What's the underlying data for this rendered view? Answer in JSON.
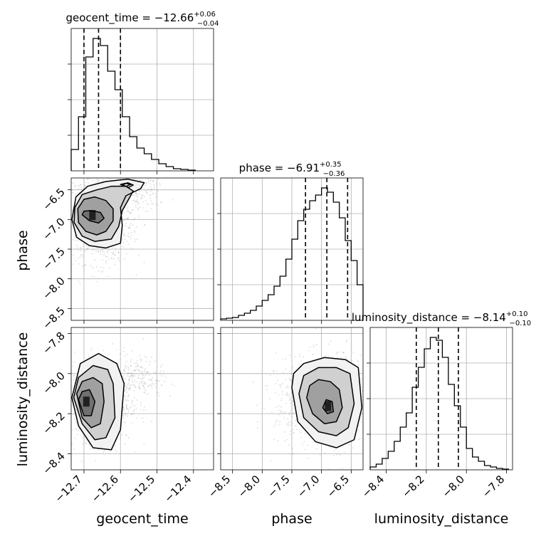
{
  "chart_data": {
    "type": "corner",
    "parameters": [
      {
        "key": "geocent_time",
        "label": "geocent_time",
        "median": -12.66,
        "plus": "+0.06",
        "minus": "−0.04",
        "title_main": "geocent_time = −12.66",
        "quantiles": [
          -12.7,
          -12.66,
          -12.6
        ],
        "range": [
          -12.735,
          -12.345
        ],
        "ticks": [
          -12.7,
          -12.6,
          -12.5,
          -12.4
        ],
        "tick_labels": [
          "−12.7",
          "−12.6",
          "−12.5",
          "−12.4"
        ],
        "hist_edges": [
          -12.735,
          -12.715,
          -12.695,
          -12.675,
          -12.655,
          -12.635,
          -12.615,
          -12.595,
          -12.575,
          -12.555,
          -12.535,
          -12.515,
          -12.495,
          -12.475,
          -12.455,
          -12.435,
          -12.415,
          -12.395
        ],
        "hist_counts": [
          0.15,
          0.38,
          0.8,
          0.93,
          0.88,
          0.7,
          0.57,
          0.38,
          0.24,
          0.16,
          0.12,
          0.08,
          0.05,
          0.03,
          0.015,
          0.01,
          0.005
        ]
      },
      {
        "key": "phase",
        "label": "phase",
        "median": -6.91,
        "plus": "+0.35",
        "minus": "−0.36",
        "title_main": "phase = −6.91",
        "quantiles": [
          -7.27,
          -6.91,
          -6.56
        ],
        "range": [
          -8.7,
          -6.3
        ],
        "ticks": [
          -8.5,
          -8.0,
          -7.5,
          -7.0,
          -6.5
        ],
        "tick_labels": [
          "−8.5",
          "−8.0",
          "−7.5",
          "−7.0",
          "−6.5"
        ],
        "hist_edges": [
          -8.7,
          -8.6,
          -8.5,
          -8.4,
          -8.3,
          -8.2,
          -8.1,
          -8.0,
          -7.9,
          -7.8,
          -7.7,
          -7.6,
          -7.5,
          -7.4,
          -7.3,
          -7.2,
          -7.1,
          -7.0,
          -6.9,
          -6.8,
          -6.7,
          -6.6,
          -6.5,
          -6.4,
          -6.3
        ],
        "hist_counts": [
          0.01,
          0.015,
          0.02,
          0.035,
          0.05,
          0.07,
          0.1,
          0.14,
          0.18,
          0.24,
          0.31,
          0.43,
          0.57,
          0.7,
          0.78,
          0.84,
          0.88,
          0.93,
          0.9,
          0.83,
          0.72,
          0.56,
          0.42,
          0.25
        ]
      },
      {
        "key": "luminosity_distance",
        "label": "luminosity_distance",
        "median": -8.14,
        "plus": "+0.10",
        "minus": "−0.10",
        "title_main": "luminosity_distance = −8.14",
        "quantiles": [
          -8.25,
          -8.14,
          -8.04
        ],
        "range": [
          -8.48,
          -7.77
        ],
        "ticks": [
          -8.4,
          -8.2,
          -8.0,
          -7.8
        ],
        "tick_labels": [
          "−8.4",
          "−8.2",
          "−8.0",
          "−7.8"
        ],
        "hist_edges": [
          -8.48,
          -8.45,
          -8.42,
          -8.39,
          -8.36,
          -8.33,
          -8.3,
          -8.27,
          -8.24,
          -8.21,
          -8.18,
          -8.15,
          -8.12,
          -8.09,
          -8.06,
          -8.03,
          -8.0,
          -7.97,
          -7.94,
          -7.91,
          -7.88,
          -7.85,
          -7.82,
          -7.79
        ],
        "hist_counts": [
          0.02,
          0.04,
          0.08,
          0.13,
          0.2,
          0.3,
          0.4,
          0.58,
          0.72,
          0.85,
          0.93,
          0.91,
          0.79,
          0.6,
          0.45,
          0.3,
          0.15,
          0.09,
          0.06,
          0.03,
          0.02,
          0.01,
          0.005
        ]
      }
    ],
    "histogram_y_ticks_unlabeled": true,
    "pairs": [
      {
        "x": "geocent_time",
        "y": "phase",
        "contours": [
          [
            [
              -12.705,
              -6.92
            ],
            [
              -12.685,
              -7.02
            ],
            [
              -12.66,
              -7.06
            ],
            [
              -12.645,
              -6.98
            ],
            [
              -12.655,
              -6.88
            ],
            [
              -12.68,
              -6.85
            ],
            [
              -12.7,
              -6.86
            ]
          ],
          [
            [
              -12.715,
              -7.05
            ],
            [
              -12.695,
              -7.2
            ],
            [
              -12.665,
              -7.26
            ],
            [
              -12.64,
              -7.2
            ],
            [
              -12.62,
              -7.02
            ],
            [
              -12.62,
              -6.82
            ],
            [
              -12.64,
              -6.68
            ],
            [
              -12.67,
              -6.62
            ],
            [
              -12.7,
              -6.66
            ],
            [
              -12.717,
              -6.82
            ]
          ],
          [
            [
              -12.727,
              -7.05
            ],
            [
              -12.705,
              -7.28
            ],
            [
              -12.67,
              -7.37
            ],
            [
              -12.625,
              -7.33
            ],
            [
              -12.605,
              -7.12
            ],
            [
              -12.595,
              -6.85
            ],
            [
              -12.565,
              -6.52
            ],
            [
              -12.585,
              -6.44
            ],
            [
              -12.625,
              -6.44
            ],
            [
              -12.665,
              -6.5
            ],
            [
              -12.705,
              -6.58
            ],
            [
              -12.725,
              -6.8
            ]
          ],
          [
            [
              -12.733,
              -7.0
            ],
            [
              -12.72,
              -7.3
            ],
            [
              -12.685,
              -7.44
            ],
            [
              -12.64,
              -7.48
            ],
            [
              -12.6,
              -7.4
            ],
            [
              -12.595,
              -7.1
            ],
            [
              -12.6,
              -6.8
            ],
            [
              -12.585,
              -6.6
            ],
            [
              -12.545,
              -6.48
            ],
            [
              -12.535,
              -6.38
            ],
            [
              -12.58,
              -6.32
            ],
            [
              -12.64,
              -6.36
            ],
            [
              -12.69,
              -6.44
            ],
            [
              -12.722,
              -6.62
            ]
          ],
          [
            [
              -12.595,
              -6.42
            ],
            [
              -12.578,
              -6.46
            ],
            [
              -12.565,
              -6.42
            ],
            [
              -12.58,
              -6.38
            ]
          ],
          [
            [
              -12.6,
              -6.41
            ],
            [
              -12.585,
              -6.44
            ],
            [
              -12.572,
              -6.41
            ],
            [
              -12.586,
              -6.39
            ]
          ]
        ],
        "cloud": {
          "cx": -12.655,
          "cy": -6.98,
          "sx": 0.04,
          "sy": 0.34,
          "tail": [
            -12.55,
            -6.45
          ]
        },
        "xlim": [
          -12.735,
          -12.345
        ],
        "ylim": [
          -8.7,
          -6.3
        ]
      },
      {
        "x": "geocent_time",
        "y": "luminosity_distance",
        "contours": [
          [
            [
              -12.715,
              -8.13
            ],
            [
              -12.7,
              -8.21
            ],
            [
              -12.68,
              -8.21
            ],
            [
              -12.67,
              -8.14
            ],
            [
              -12.685,
              -8.08
            ],
            [
              -12.705,
              -8.09
            ]
          ],
          [
            [
              -12.72,
              -8.1
            ],
            [
              -12.705,
              -8.22
            ],
            [
              -12.68,
              -8.27
            ],
            [
              -12.655,
              -8.25
            ],
            [
              -12.645,
              -8.14
            ],
            [
              -12.65,
              -8.05
            ],
            [
              -12.675,
              -8.02
            ],
            [
              -12.705,
              -8.04
            ]
          ],
          [
            [
              -12.728,
              -8.12
            ],
            [
              -12.705,
              -8.25
            ],
            [
              -12.67,
              -8.33
            ],
            [
              -12.64,
              -8.32
            ],
            [
              -12.615,
              -8.22
            ],
            [
              -12.62,
              -8.05
            ],
            [
              -12.635,
              -7.98
            ],
            [
              -12.675,
              -7.96
            ],
            [
              -12.715,
              -8.02
            ]
          ],
          [
            [
              -12.733,
              -8.12
            ],
            [
              -12.715,
              -8.26
            ],
            [
              -12.675,
              -8.37
            ],
            [
              -12.625,
              -8.38
            ],
            [
              -12.6,
              -8.28
            ],
            [
              -12.59,
              -8.05
            ],
            [
              -12.61,
              -7.95
            ],
            [
              -12.66,
              -7.9
            ],
            [
              -12.71,
              -7.95
            ]
          ]
        ],
        "cloud": {
          "cx": -12.66,
          "cy": -8.14,
          "sx": 0.04,
          "sy": 0.09,
          "tail": [
            -12.55,
            -8.02
          ]
        },
        "xlim": [
          -12.735,
          -12.345
        ],
        "ylim": [
          -8.48,
          -7.77
        ]
      },
      {
        "x": "phase",
        "y": "luminosity_distance",
        "contours": [
          [
            [
              -6.98,
              -8.17
            ],
            [
              -6.9,
              -8.2
            ],
            [
              -6.8,
              -8.19
            ],
            [
              -6.82,
              -8.14
            ],
            [
              -6.92,
              -8.13
            ]
          ],
          [
            [
              -7.25,
              -8.12
            ],
            [
              -7.15,
              -8.2
            ],
            [
              -6.95,
              -8.25
            ],
            [
              -6.75,
              -8.24
            ],
            [
              -6.65,
              -8.17
            ],
            [
              -6.7,
              -8.08
            ],
            [
              -6.85,
              -8.04
            ],
            [
              -7.05,
              -8.03
            ],
            [
              -7.2,
              -8.06
            ]
          ],
          [
            [
              -7.38,
              -8.1
            ],
            [
              -7.3,
              -8.22
            ],
            [
              -7.05,
              -8.29
            ],
            [
              -6.75,
              -8.31
            ],
            [
              -6.55,
              -8.27
            ],
            [
              -6.45,
              -8.15
            ],
            [
              -6.52,
              -8.0
            ],
            [
              -6.75,
              -7.97
            ],
            [
              -7.05,
              -7.97
            ],
            [
              -7.3,
              -8.01
            ]
          ],
          [
            [
              -7.5,
              -8.07
            ],
            [
              -7.4,
              -8.24
            ],
            [
              -7.1,
              -8.34
            ],
            [
              -6.75,
              -8.37
            ],
            [
              -6.45,
              -8.33
            ],
            [
              -6.32,
              -8.17
            ],
            [
              -6.38,
              -7.97
            ],
            [
              -6.6,
              -7.93
            ],
            [
              -6.95,
              -7.92
            ],
            [
              -7.3,
              -7.95
            ],
            [
              -7.47,
              -8.0
            ]
          ]
        ],
        "cloud": {
          "cx": -6.92,
          "cy": -8.14,
          "sx": 0.38,
          "sy": 0.1,
          "tail": [
            -6.6,
            -8.05
          ]
        },
        "xlim": [
          -8.7,
          -6.3
        ],
        "ylim": [
          -8.48,
          -7.77
        ]
      }
    ]
  }
}
